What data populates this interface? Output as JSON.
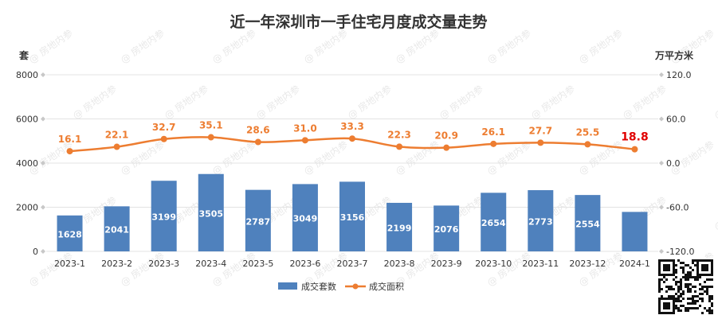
{
  "chart_data": {
    "type": "bar",
    "title": "近一年深圳市一手住宅月度成交量走势",
    "categories": [
      "2023-1",
      "2023-2",
      "2023-3",
      "2023-4",
      "2023-5",
      "2023-6",
      "2023-7",
      "2023-8",
      "2023-9",
      "2023-10",
      "2023-11",
      "2023-12",
      "2024-1"
    ],
    "series": [
      {
        "name": "成交套数",
        "type": "bar",
        "axis": "left",
        "color": "#4f81bd",
        "values": [
          1628,
          2041,
          3199,
          3505,
          2787,
          3049,
          3156,
          2199,
          2076,
          2654,
          2773,
          2554,
          1788
        ]
      },
      {
        "name": "成交面积",
        "type": "line",
        "axis": "right",
        "color": "#ed7d31",
        "values": [
          16.1,
          22.1,
          32.7,
          35.1,
          28.6,
          31.0,
          33.3,
          22.3,
          20.9,
          26.1,
          27.7,
          25.5,
          18.8
        ]
      }
    ],
    "y_left": {
      "label": "套",
      "range": [
        0,
        8000
      ],
      "ticks": [
        "0",
        "2000",
        "4000",
        "6000",
        "8000"
      ],
      "tick_values": [
        0,
        2000,
        4000,
        6000,
        8000
      ]
    },
    "y_right": {
      "label": "万平方米",
      "range": [
        -120,
        120
      ],
      "ticks": [
        "-120.0",
        "-60.0",
        "0.0",
        "60.0",
        "120.0"
      ],
      "tick_values": [
        -120,
        -60,
        0,
        60,
        120
      ]
    },
    "highlight_color": "#e00000",
    "grid": true,
    "legend_position": "bottom",
    "watermark": "房地内参"
  }
}
